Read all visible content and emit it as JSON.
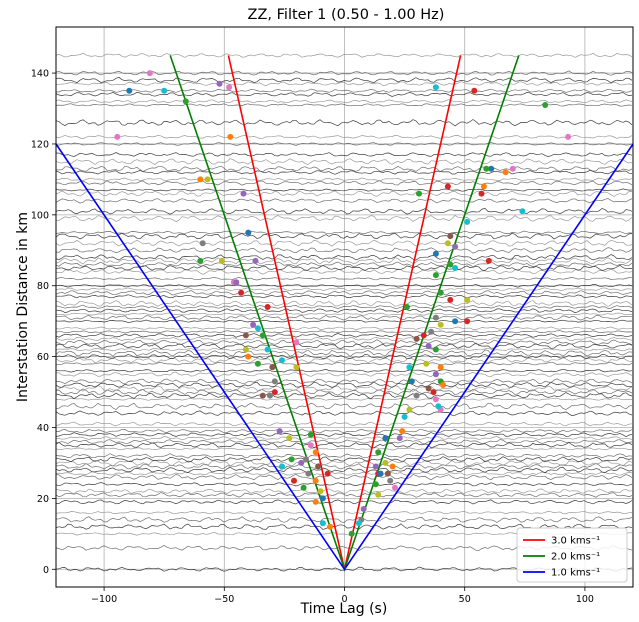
{
  "chart_data": {
    "type": "line",
    "title": "ZZ, Filter 1 (0.50 - 1.00 Hz)",
    "xlabel": "Time Lag (s)",
    "ylabel": "Interstation Distance in km",
    "xlim": [
      -120,
      120
    ],
    "ylim": [
      -5,
      153
    ],
    "xticks": [
      -100,
      -50,
      0,
      50,
      100
    ],
    "yticks": [
      0,
      20,
      40,
      60,
      80,
      100,
      120,
      140
    ],
    "grid": true,
    "legend_position": "lower-right",
    "series": [
      {
        "name": "3.0 kms⁻¹",
        "velocity_km_per_s": 3.0,
        "color": "#ff0000",
        "x": [
          -48.3,
          0,
          48.3
        ],
        "y": [
          145,
          0,
          145
        ]
      },
      {
        "name": "2.0 kms⁻¹",
        "velocity_km_per_s": 2.0,
        "color": "#008000",
        "x": [
          -72.5,
          0,
          72.5
        ],
        "y": [
          145,
          0,
          145
        ]
      },
      {
        "name": "1.0 kms⁻¹",
        "velocity_km_per_s": 1.0,
        "color": "#0000ff",
        "x": [
          -120,
          0,
          120
        ],
        "y": [
          120,
          0,
          120
        ]
      }
    ],
    "trace_distances": [
      0,
      6,
      10,
      12,
      14,
      16,
      19,
      21,
      22,
      24,
      26,
      27,
      28,
      29,
      30,
      31,
      32,
      34,
      35,
      36,
      37,
      38,
      39,
      41,
      44,
      46,
      48,
      49,
      50,
      51,
      52,
      53,
      55,
      56,
      58,
      59,
      60,
      61,
      62,
      63,
      64,
      65,
      66,
      67,
      68,
      70,
      71,
      72,
      73,
      74,
      75,
      77,
      78,
      79,
      80,
      82,
      84,
      85,
      86,
      87,
      88,
      90,
      92,
      94,
      95,
      99,
      101,
      104,
      106,
      107,
      109,
      110,
      112,
      113,
      115,
      117,
      120,
      122,
      126,
      131,
      132,
      134,
      135,
      137,
      138,
      140,
      145
    ],
    "picks": [
      {
        "x": -89.5,
        "y": 135,
        "color": "#1f77b4"
      },
      {
        "x": -81,
        "y": 140,
        "color": "#e377c2"
      },
      {
        "x": -75,
        "y": 135,
        "color": "#17becf"
      },
      {
        "x": -66,
        "y": 132,
        "color": "#2ca02c"
      },
      {
        "x": -52,
        "y": 137,
        "color": "#9467bd"
      },
      {
        "x": -48,
        "y": 136,
        "color": "#e377c2"
      },
      {
        "x": -94.5,
        "y": 122,
        "color": "#e377c2"
      },
      {
        "x": -47.5,
        "y": 122,
        "color": "#ff7f0e"
      },
      {
        "x": -60,
        "y": 110,
        "color": "#ff7f0e"
      },
      {
        "x": -57,
        "y": 110,
        "color": "#bcbd22"
      },
      {
        "x": -42,
        "y": 106,
        "color": "#9467bd"
      },
      {
        "x": -40,
        "y": 95,
        "color": "#1f77b4"
      },
      {
        "x": -59,
        "y": 92,
        "color": "#7f7f7f"
      },
      {
        "x": -60,
        "y": 87,
        "color": "#2ca02c"
      },
      {
        "x": -51,
        "y": 87,
        "color": "#bcbd22"
      },
      {
        "x": -37,
        "y": 87,
        "color": "#9467bd"
      },
      {
        "x": -46,
        "y": 81,
        "color": "#e377c2"
      },
      {
        "x": -45,
        "y": 81,
        "color": "#9467bd"
      },
      {
        "x": -43,
        "y": 78,
        "color": "#d62728"
      },
      {
        "x": -32,
        "y": 74,
        "color": "#d62728"
      },
      {
        "x": -38,
        "y": 69,
        "color": "#9467bd"
      },
      {
        "x": -36,
        "y": 68,
        "color": "#17becf"
      },
      {
        "x": -41,
        "y": 66,
        "color": "#8c564b"
      },
      {
        "x": -34,
        "y": 66,
        "color": "#2ca02c"
      },
      {
        "x": -20,
        "y": 64,
        "color": "#e377c2"
      },
      {
        "x": -41,
        "y": 62,
        "color": "#bcbd22"
      },
      {
        "x": -32,
        "y": 62,
        "color": "#17becf"
      },
      {
        "x": -40,
        "y": 60,
        "color": "#ff7f0e"
      },
      {
        "x": -26,
        "y": 59,
        "color": "#17becf"
      },
      {
        "x": -36,
        "y": 58,
        "color": "#2ca02c"
      },
      {
        "x": -30,
        "y": 57,
        "color": "#8c564b"
      },
      {
        "x": -20,
        "y": 57,
        "color": "#bcbd22"
      },
      {
        "x": -29,
        "y": 53,
        "color": "#7f7f7f"
      },
      {
        "x": -29,
        "y": 50,
        "color": "#d62728"
      },
      {
        "x": -34,
        "y": 49,
        "color": "#8c564b"
      },
      {
        "x": -31,
        "y": 49,
        "color": "#7f7f7f"
      },
      {
        "x": -27,
        "y": 39,
        "color": "#9467bd"
      },
      {
        "x": -23,
        "y": 37,
        "color": "#bcbd22"
      },
      {
        "x": -14,
        "y": 38,
        "color": "#2ca02c"
      },
      {
        "x": -14,
        "y": 35,
        "color": "#e377c2"
      },
      {
        "x": -12,
        "y": 33,
        "color": "#ff7f0e"
      },
      {
        "x": -22,
        "y": 31,
        "color": "#2ca02c"
      },
      {
        "x": -16,
        "y": 31,
        "color": "#7f7f7f"
      },
      {
        "x": -18,
        "y": 30,
        "color": "#9467bd"
      },
      {
        "x": -26,
        "y": 29,
        "color": "#17becf"
      },
      {
        "x": -11,
        "y": 29,
        "color": "#8c564b"
      },
      {
        "x": -15,
        "y": 27,
        "color": "#7f7f7f"
      },
      {
        "x": -7,
        "y": 27,
        "color": "#d62728"
      },
      {
        "x": -21,
        "y": 25,
        "color": "#d62728"
      },
      {
        "x": -12,
        "y": 25,
        "color": "#ff7f0e"
      },
      {
        "x": -10,
        "y": 22,
        "color": "#bcbd22"
      },
      {
        "x": -17,
        "y": 23,
        "color": "#2ca02c"
      },
      {
        "x": -12,
        "y": 19,
        "color": "#ff7f0e"
      },
      {
        "x": -9,
        "y": 20,
        "color": "#1f77b4"
      },
      {
        "x": -9,
        "y": 13,
        "color": "#17becf"
      },
      {
        "x": -6,
        "y": 12,
        "color": "#ff7f0e"
      },
      {
        "x": 38,
        "y": 136,
        "color": "#17becf"
      },
      {
        "x": 54,
        "y": 135,
        "color": "#d62728"
      },
      {
        "x": 83.5,
        "y": 131,
        "color": "#2ca02c"
      },
      {
        "x": 93,
        "y": 122,
        "color": "#e377c2"
      },
      {
        "x": 61,
        "y": 113,
        "color": "#1f77b4"
      },
      {
        "x": 59,
        "y": 113,
        "color": "#2ca02c"
      },
      {
        "x": 70,
        "y": 113,
        "color": "#e377c2"
      },
      {
        "x": 67,
        "y": 112,
        "color": "#ff7f0e"
      },
      {
        "x": 43,
        "y": 108,
        "color": "#d62728"
      },
      {
        "x": 58,
        "y": 108,
        "color": "#ff7f0e"
      },
      {
        "x": 57,
        "y": 106,
        "color": "#d62728"
      },
      {
        "x": 31,
        "y": 106,
        "color": "#2ca02c"
      },
      {
        "x": 74,
        "y": 101,
        "color": "#17becf"
      },
      {
        "x": 51,
        "y": 98,
        "color": "#17becf"
      },
      {
        "x": 44,
        "y": 94,
        "color": "#8c564b"
      },
      {
        "x": 43,
        "y": 92,
        "color": "#bcbd22"
      },
      {
        "x": 46,
        "y": 91,
        "color": "#9467bd"
      },
      {
        "x": 38,
        "y": 89,
        "color": "#1f77b4"
      },
      {
        "x": 60,
        "y": 87,
        "color": "#d62728"
      },
      {
        "x": 44,
        "y": 86,
        "color": "#2ca02c"
      },
      {
        "x": 46,
        "y": 85,
        "color": "#17becf"
      },
      {
        "x": 38,
        "y": 83,
        "color": "#2ca02c"
      },
      {
        "x": 40,
        "y": 78,
        "color": "#2ca02c"
      },
      {
        "x": 44,
        "y": 76,
        "color": "#d62728"
      },
      {
        "x": 51,
        "y": 76,
        "color": "#bcbd22"
      },
      {
        "x": 26,
        "y": 74,
        "color": "#2ca02c"
      },
      {
        "x": 38,
        "y": 71,
        "color": "#7f7f7f"
      },
      {
        "x": 46,
        "y": 70,
        "color": "#1f77b4"
      },
      {
        "x": 51,
        "y": 70,
        "color": "#d62728"
      },
      {
        "x": 40,
        "y": 69,
        "color": "#bcbd22"
      },
      {
        "x": 36,
        "y": 67,
        "color": "#7f7f7f"
      },
      {
        "x": 33,
        "y": 66,
        "color": "#d62728"
      },
      {
        "x": 30,
        "y": 65,
        "color": "#8c564b"
      },
      {
        "x": 35,
        "y": 63,
        "color": "#9467bd"
      },
      {
        "x": 38,
        "y": 62,
        "color": "#2ca02c"
      },
      {
        "x": 34,
        "y": 58,
        "color": "#bcbd22"
      },
      {
        "x": 27,
        "y": 57,
        "color": "#17becf"
      },
      {
        "x": 40,
        "y": 57,
        "color": "#ff7f0e"
      },
      {
        "x": 38,
        "y": 55,
        "color": "#9467bd"
      },
      {
        "x": 28,
        "y": 53,
        "color": "#1f77b4"
      },
      {
        "x": 40,
        "y": 53,
        "color": "#2ca02c"
      },
      {
        "x": 41,
        "y": 52,
        "color": "#ff7f0e"
      },
      {
        "x": 35,
        "y": 51,
        "color": "#8c564b"
      },
      {
        "x": 37,
        "y": 50,
        "color": "#d62728"
      },
      {
        "x": 30,
        "y": 49,
        "color": "#7f7f7f"
      },
      {
        "x": 38,
        "y": 48,
        "color": "#e377c2"
      },
      {
        "x": 27,
        "y": 45,
        "color": "#bcbd22"
      },
      {
        "x": 40,
        "y": 45,
        "color": "#e377c2"
      },
      {
        "x": 39,
        "y": 46,
        "color": "#17becf"
      },
      {
        "x": 25,
        "y": 43,
        "color": "#17becf"
      },
      {
        "x": 24,
        "y": 39,
        "color": "#ff7f0e"
      },
      {
        "x": 23,
        "y": 37,
        "color": "#9467bd"
      },
      {
        "x": 17,
        "y": 37,
        "color": "#1f77b4"
      },
      {
        "x": 14,
        "y": 33,
        "color": "#2ca02c"
      },
      {
        "x": 17,
        "y": 30,
        "color": "#bcbd22"
      },
      {
        "x": 20,
        "y": 29,
        "color": "#ff7f0e"
      },
      {
        "x": 13,
        "y": 29,
        "color": "#9467bd"
      },
      {
        "x": 14,
        "y": 27,
        "color": "#d62728"
      },
      {
        "x": 18,
        "y": 27,
        "color": "#8c564b"
      },
      {
        "x": 15,
        "y": 27,
        "color": "#1f77b4"
      },
      {
        "x": 19,
        "y": 25,
        "color": "#7f7f7f"
      },
      {
        "x": 13,
        "y": 24,
        "color": "#2ca02c"
      },
      {
        "x": 21,
        "y": 23,
        "color": "#e377c2"
      },
      {
        "x": 14,
        "y": 21,
        "color": "#bcbd22"
      },
      {
        "x": 8,
        "y": 17,
        "color": "#9467bd"
      },
      {
        "x": 7,
        "y": 14,
        "color": "#7f7f7f"
      },
      {
        "x": 6,
        "y": 13,
        "color": "#17becf"
      },
      {
        "x": 3,
        "y": 10,
        "color": "#2ca02c"
      }
    ]
  }
}
